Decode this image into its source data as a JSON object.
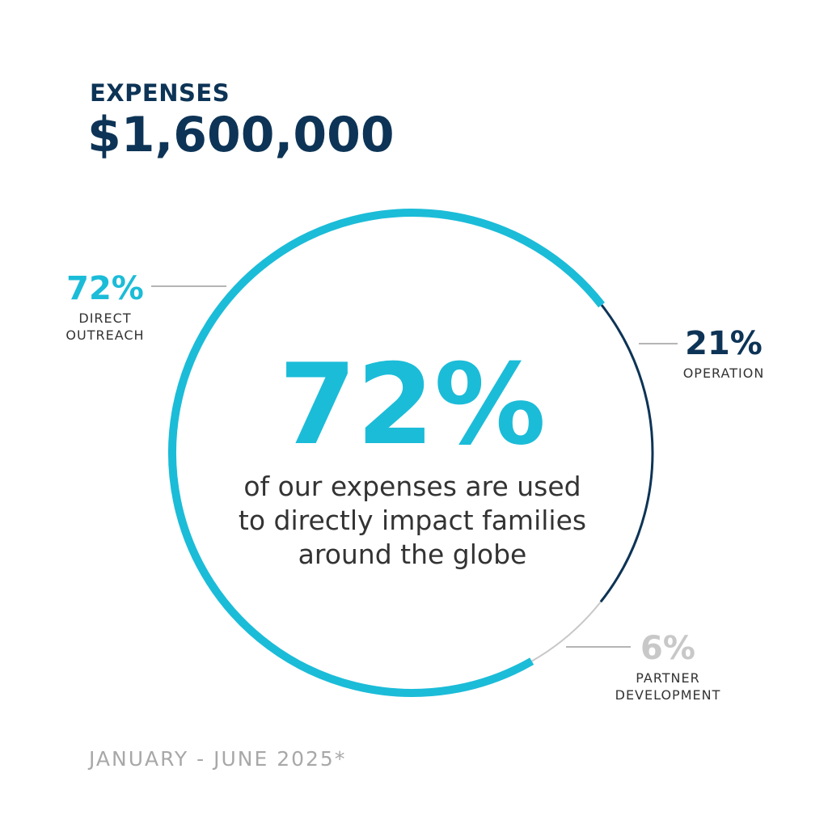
{
  "title": "EXPENSES",
  "subtitle": "$1,600,000",
  "chart_data": {
    "type": "pie",
    "donut": true,
    "categories": [
      "DIRECT OUTREACH",
      "OPERATION",
      "PARTNER DEVELOPMENT"
    ],
    "values": [
      72,
      21,
      6
    ],
    "value_labels": [
      "72%",
      "21%",
      "6%"
    ],
    "colors": [
      "#1bbcd8",
      "#0d3456",
      "#c8c8c8"
    ],
    "center_label": "72%",
    "caption": [
      "of our expenses are used",
      "to directly impact families",
      "around the globe"
    ]
  },
  "footnote": "JANUARY - JUNE 2025*"
}
